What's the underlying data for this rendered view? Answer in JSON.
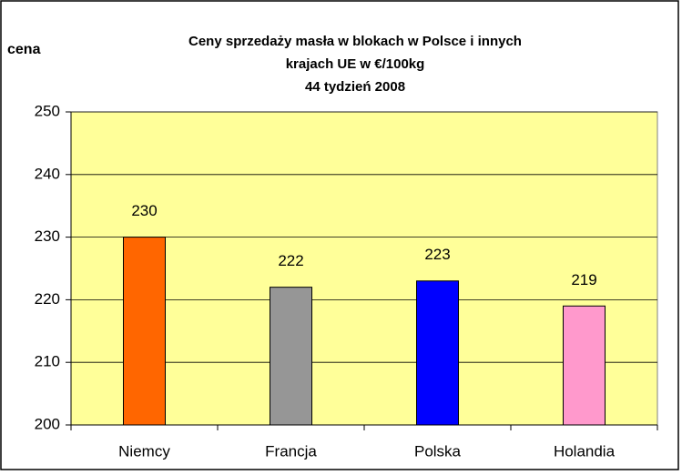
{
  "chart_data": {
    "type": "bar",
    "title": [
      "Ceny sprzedaży masła w blokach w Polsce i  innych",
      "krajach UE w €/100kg",
      "44 tydzień 2008"
    ],
    "y_label": "cena",
    "categories": [
      "Niemcy",
      "Francja",
      "Polska",
      "Holandia"
    ],
    "values": [
      230,
      222,
      223,
      219
    ],
    "colors": [
      "#ff6600",
      "#969696",
      "#0000ff",
      "#ff99cc"
    ],
    "background": "#ffff99",
    "ylim": [
      200,
      250
    ],
    "yticks": [
      200,
      210,
      220,
      230,
      240,
      250
    ],
    "grid": true
  }
}
